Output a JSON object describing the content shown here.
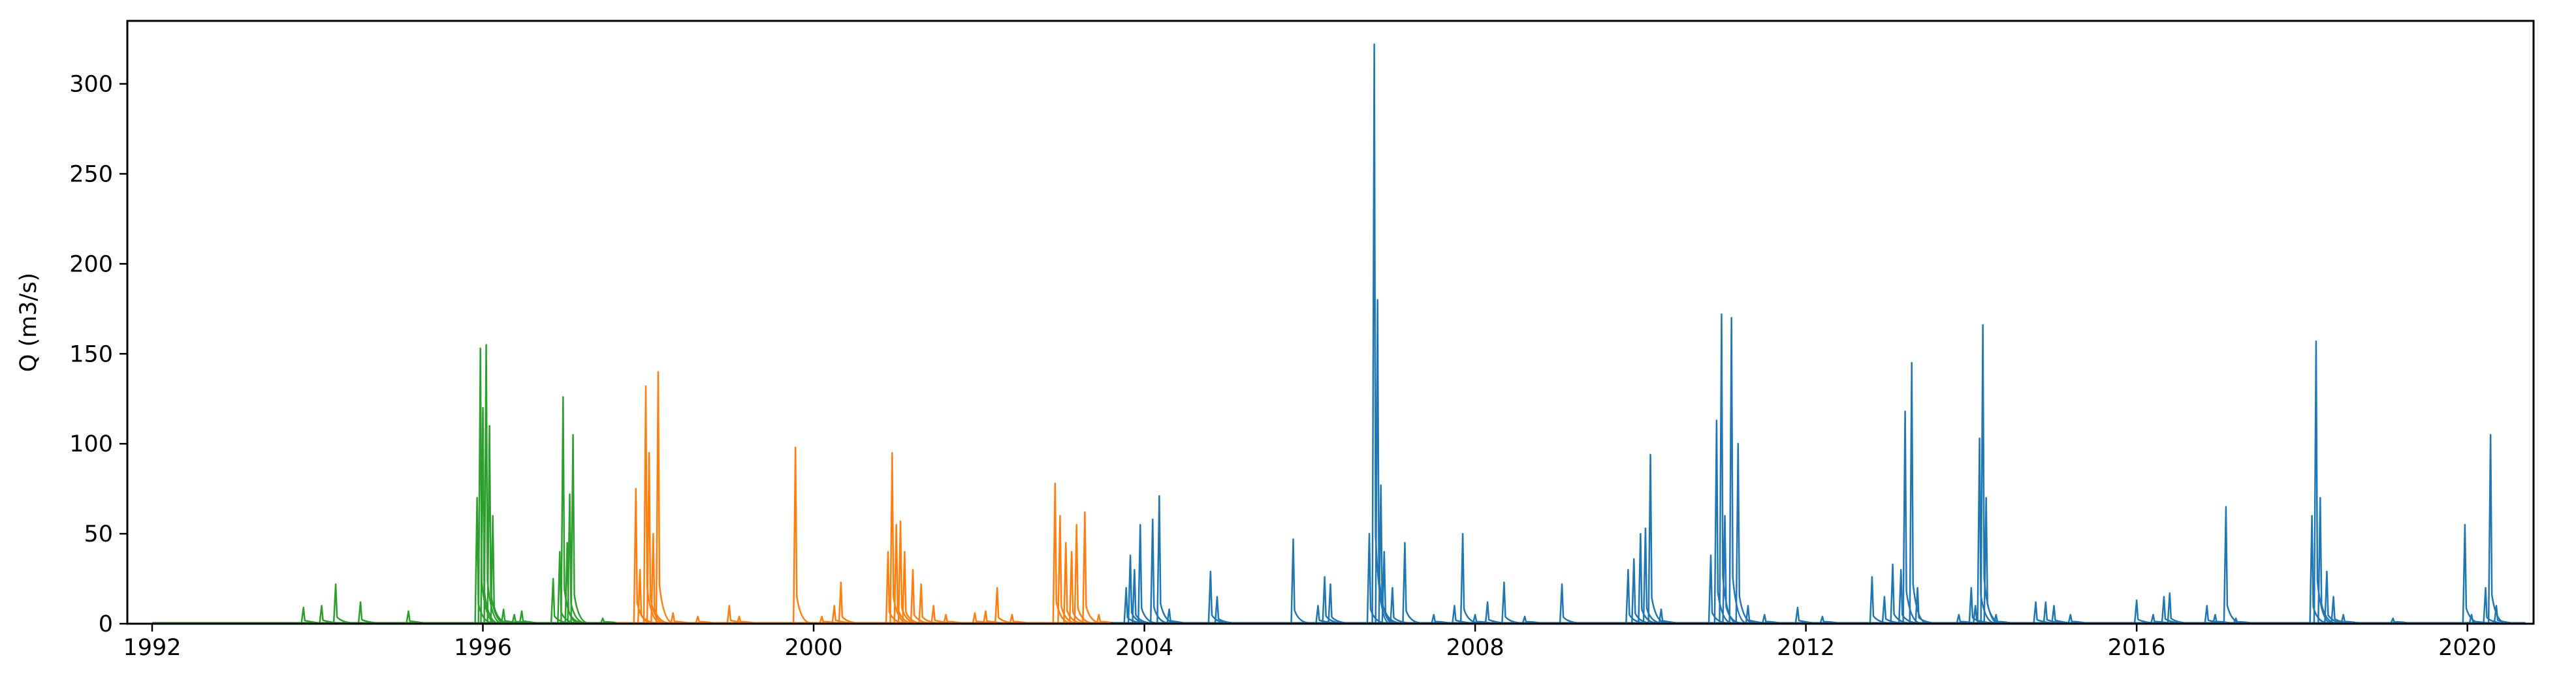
{
  "chart_data": {
    "type": "line",
    "title": "",
    "xlabel": "",
    "ylabel": "Q (m3/s)",
    "xlim": [
      1991.7,
      2020.8
    ],
    "ylim": [
      0,
      335
    ],
    "x_ticks": [
      1992,
      1996,
      2000,
      2004,
      2008,
      2012,
      2016,
      2020
    ],
    "x_tick_labels": [
      "1992",
      "1996",
      "2000",
      "2004",
      "2008",
      "2012",
      "2016",
      "2020"
    ],
    "y_ticks": [
      0,
      50,
      100,
      150,
      200,
      250,
      300
    ],
    "y_tick_labels": [
      "0",
      "50",
      "100",
      "150",
      "200",
      "250",
      "300"
    ],
    "grid": false,
    "legend": "none",
    "series": [
      {
        "color": "#2ca02c",
        "x_range": [
          1992.0,
          1997.6
        ],
        "peaks": [
          [
            1993.83,
            9
          ],
          [
            1994.05,
            10
          ],
          [
            1994.22,
            22
          ],
          [
            1994.52,
            12
          ],
          [
            1995.1,
            7
          ],
          [
            1995.93,
            70
          ],
          [
            1995.97,
            153
          ],
          [
            1996.0,
            120
          ],
          [
            1996.04,
            155
          ],
          [
            1996.08,
            110
          ],
          [
            1996.12,
            60
          ],
          [
            1996.25,
            8
          ],
          [
            1996.38,
            5
          ],
          [
            1996.47,
            7
          ],
          [
            1996.85,
            25
          ],
          [
            1996.93,
            40
          ],
          [
            1996.97,
            126
          ],
          [
            1997.02,
            45
          ],
          [
            1997.05,
            72
          ],
          [
            1997.09,
            105
          ],
          [
            1997.45,
            3
          ]
        ]
      },
      {
        "color": "#ff7f0e",
        "x_range": [
          1997.6,
          2003.6
        ],
        "peaks": [
          [
            1997.85,
            75
          ],
          [
            1997.9,
            30
          ],
          [
            1997.97,
            132
          ],
          [
            1998.01,
            95
          ],
          [
            1998.06,
            50
          ],
          [
            1998.12,
            140
          ],
          [
            1998.3,
            6
          ],
          [
            1998.6,
            4
          ],
          [
            1998.98,
            10
          ],
          [
            1999.1,
            4
          ],
          [
            1999.78,
            98
          ],
          [
            2000.1,
            4
          ],
          [
            2000.25,
            10
          ],
          [
            2000.33,
            23
          ],
          [
            2000.9,
            40
          ],
          [
            2000.95,
            95
          ],
          [
            2001.0,
            55
          ],
          [
            2001.05,
            57
          ],
          [
            2001.1,
            40
          ],
          [
            2001.2,
            30
          ],
          [
            2001.3,
            22
          ],
          [
            2001.45,
            10
          ],
          [
            2001.6,
            5
          ],
          [
            2001.95,
            6
          ],
          [
            2002.08,
            7
          ],
          [
            2002.22,
            20
          ],
          [
            2002.4,
            5
          ],
          [
            2002.92,
            78
          ],
          [
            2002.98,
            60
          ],
          [
            2003.05,
            45
          ],
          [
            2003.12,
            40
          ],
          [
            2003.18,
            55
          ],
          [
            2003.28,
            62
          ],
          [
            2003.45,
            5
          ]
        ]
      },
      {
        "color": "#1f77b4",
        "x_range": [
          2003.6,
          2020.7
        ],
        "peaks": [
          [
            2003.78,
            20
          ],
          [
            2003.83,
            38
          ],
          [
            2003.88,
            30
          ],
          [
            2003.95,
            55
          ],
          [
            2004.1,
            58
          ],
          [
            2004.18,
            71
          ],
          [
            2004.3,
            8
          ],
          [
            2004.8,
            29
          ],
          [
            2004.88,
            15
          ],
          [
            2005.8,
            47
          ],
          [
            2006.1,
            10
          ],
          [
            2006.18,
            26
          ],
          [
            2006.25,
            22
          ],
          [
            2006.72,
            50
          ],
          [
            2006.78,
            322
          ],
          [
            2006.82,
            180
          ],
          [
            2006.86,
            77
          ],
          [
            2006.9,
            40
          ],
          [
            2007.0,
            20
          ],
          [
            2007.15,
            45
          ],
          [
            2007.5,
            5
          ],
          [
            2007.75,
            10
          ],
          [
            2007.85,
            50
          ],
          [
            2008.0,
            5
          ],
          [
            2008.15,
            12
          ],
          [
            2008.35,
            23
          ],
          [
            2008.6,
            4
          ],
          [
            2009.05,
            22
          ],
          [
            2009.85,
            30
          ],
          [
            2009.92,
            36
          ],
          [
            2010.0,
            50
          ],
          [
            2010.06,
            53
          ],
          [
            2010.12,
            94
          ],
          [
            2010.25,
            8
          ],
          [
            2010.85,
            38
          ],
          [
            2010.92,
            113
          ],
          [
            2010.98,
            172
          ],
          [
            2011.02,
            60
          ],
          [
            2011.1,
            170
          ],
          [
            2011.18,
            100
          ],
          [
            2011.3,
            10
          ],
          [
            2011.5,
            5
          ],
          [
            2011.9,
            9
          ],
          [
            2012.2,
            4
          ],
          [
            2012.8,
            26
          ],
          [
            2012.95,
            15
          ],
          [
            2013.05,
            33
          ],
          [
            2013.15,
            30
          ],
          [
            2013.2,
            118
          ],
          [
            2013.28,
            145
          ],
          [
            2013.35,
            20
          ],
          [
            2013.85,
            5
          ],
          [
            2014.0,
            20
          ],
          [
            2014.05,
            10
          ],
          [
            2014.1,
            103
          ],
          [
            2014.14,
            166
          ],
          [
            2014.18,
            70
          ],
          [
            2014.3,
            5
          ],
          [
            2014.78,
            12
          ],
          [
            2014.9,
            12
          ],
          [
            2015.0,
            10
          ],
          [
            2015.2,
            5
          ],
          [
            2016.0,
            13
          ],
          [
            2016.2,
            5
          ],
          [
            2016.33,
            15
          ],
          [
            2016.4,
            17
          ],
          [
            2016.85,
            10
          ],
          [
            2016.95,
            5
          ],
          [
            2017.08,
            65
          ],
          [
            2017.2,
            3
          ],
          [
            2018.12,
            60
          ],
          [
            2018.17,
            157
          ],
          [
            2018.22,
            70
          ],
          [
            2018.3,
            29
          ],
          [
            2018.38,
            15
          ],
          [
            2018.5,
            5
          ],
          [
            2019.1,
            3
          ],
          [
            2019.97,
            55
          ],
          [
            2020.05,
            5
          ],
          [
            2020.22,
            20
          ],
          [
            2020.28,
            105
          ],
          [
            2020.35,
            10
          ]
        ]
      }
    ]
  }
}
